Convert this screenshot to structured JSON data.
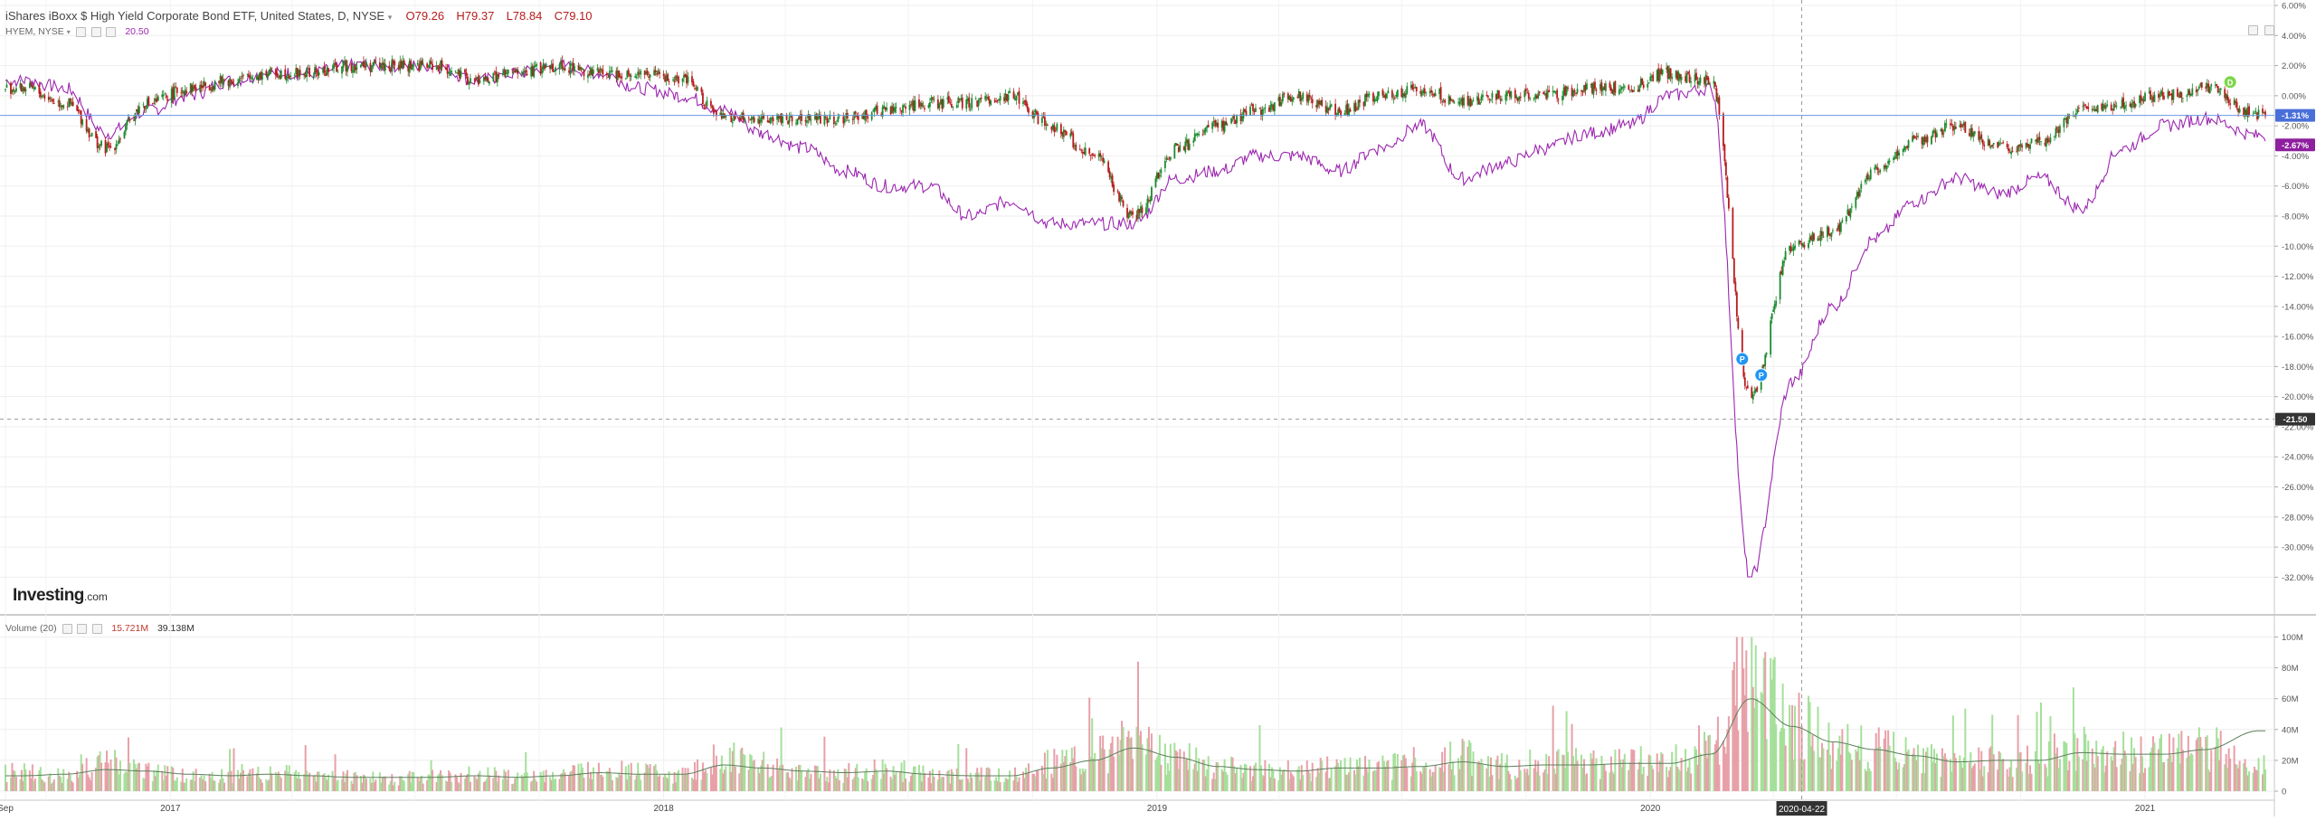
{
  "legend": {
    "main_title": "iShares iBoxx $ High Yield Corporate Bond ETF, United States, D, NYSE",
    "ohlc": {
      "open": "O79.26",
      "high": "H79.37",
      "low": "L78.84",
      "close": "C79.10"
    },
    "compare_symbol": "HYEM, NYSE",
    "compare_value": "20.50",
    "volume_label": "Volume (20)",
    "volume_value": "15.721M",
    "volume_ma_value": "39.138M"
  },
  "branding": {
    "logo_main": "Investing",
    "logo_suffix": ".com"
  },
  "price_badges": {
    "main": "-1.31%",
    "compare": "-2.67%",
    "crosshair": "-21.50"
  },
  "crosshair_date": "2020-04-22",
  "colors": {
    "up": "#26a69a",
    "up_candle": "#1b8a2e",
    "down": "#b71c1c",
    "compare_line": "#9c27b0",
    "volume_up": "#a5e09a",
    "volume_down": "#e8a0a8",
    "volume_ma": "#5d7f5d",
    "main_badge": "#4a6fd8",
    "compare_badge": "#8e1f9e",
    "marker_green": "#7cd64a",
    "marker_blue": "#2196f3"
  },
  "markers": [
    {
      "label": "D",
      "date": "2021-03-05",
      "icon": "dividend-marker-icon"
    },
    {
      "label": "P",
      "date": "2020-03-09",
      "icon": "split-marker-icon"
    },
    {
      "label": "P",
      "date": "2020-03-23",
      "icon": "split-marker-icon"
    }
  ],
  "chart_data": [
    {
      "type": "line",
      "title": "iShares iBoxx $ High Yield Corporate Bond ETF, United States, D, NYSE",
      "ylim": [
        -33,
        6
      ],
      "y_ticks": [
        "6.00%",
        "4.00%",
        "2.00%",
        "0.00%",
        "-2.00%",
        "-4.00%",
        "-6.00%",
        "-8.00%",
        "-10.00%",
        "-12.00%",
        "-14.00%",
        "-16.00%",
        "-18.00%",
        "-20.00%",
        "-22.00%",
        "-24.00%",
        "-26.00%",
        "-28.00%",
        "-30.00%",
        "-32.00%"
      ],
      "x_ticks": [
        "Sep",
        "2017",
        "2018",
        "2019",
        "2020",
        "2021"
      ],
      "grid": true,
      "series": [
        {
          "name": "iShares iBoxx $ High Yield Corporate Bond ETF",
          "x": [
            "2016-09",
            "2016-10",
            "2016-11",
            "2016-12",
            "2017-01",
            "2017-02",
            "2017-03",
            "2017-04",
            "2017-05",
            "2017-06",
            "2017-07",
            "2017-08",
            "2017-09",
            "2017-10",
            "2017-11",
            "2017-12",
            "2018-01",
            "2018-02",
            "2018-03",
            "2018-04",
            "2018-05",
            "2018-06",
            "2018-07",
            "2018-08",
            "2018-09",
            "2018-10",
            "2018-11",
            "2018-12",
            "2019-01",
            "2019-02",
            "2019-03",
            "2019-04",
            "2019-05",
            "2019-06",
            "2019-07",
            "2019-08",
            "2019-09",
            "2019-10",
            "2019-11",
            "2019-12",
            "2020-01",
            "2020-02",
            "2020-03",
            "2020-04",
            "2020-05",
            "2020-06",
            "2020-07",
            "2020-08",
            "2020-09",
            "2020-10",
            "2020-11",
            "2020-12",
            "2021-01",
            "2021-02",
            "2021-03"
          ],
          "values": [
            0.5,
            -0.5,
            -3.5,
            -0.5,
            0.5,
            1.0,
            1.5,
            1.5,
            2.0,
            2.0,
            2.0,
            1.0,
            1.5,
            2.0,
            1.5,
            1.5,
            1.0,
            -1.5,
            -1.5,
            -1.5,
            -1.5,
            -1.0,
            -0.5,
            -0.5,
            0.0,
            -2.0,
            -4.0,
            -8.0,
            -3.5,
            -2.0,
            -1.0,
            0.0,
            -1.0,
            0.0,
            0.5,
            -0.5,
            0.0,
            0.0,
            0.5,
            0.5,
            1.5,
            1.0,
            -20.0,
            -10.0,
            -9.0,
            -5.0,
            -3.0,
            -2.0,
            -3.5,
            -3.0,
            -1.0,
            -0.5,
            0.0,
            0.5,
            -1.31
          ]
        },
        {
          "name": "HYEM, NYSE",
          "x": [
            "2016-09",
            "2016-10",
            "2016-11",
            "2016-12",
            "2017-01",
            "2017-02",
            "2017-03",
            "2017-04",
            "2017-05",
            "2017-06",
            "2017-07",
            "2017-08",
            "2017-09",
            "2017-10",
            "2017-11",
            "2017-12",
            "2018-01",
            "2018-02",
            "2018-03",
            "2018-04",
            "2018-05",
            "2018-06",
            "2018-07",
            "2018-08",
            "2018-09",
            "2018-10",
            "2018-11",
            "2018-12",
            "2019-01",
            "2019-02",
            "2019-03",
            "2019-04",
            "2019-05",
            "2019-06",
            "2019-07",
            "2019-08",
            "2019-09",
            "2019-10",
            "2019-11",
            "2019-12",
            "2020-01",
            "2020-02",
            "2020-03",
            "2020-04",
            "2020-05",
            "2020-06",
            "2020-07",
            "2020-08",
            "2020-09",
            "2020-10",
            "2020-11",
            "2020-12",
            "2021-01",
            "2021-02",
            "2021-03"
          ],
          "values": [
            1.0,
            0.5,
            -2.5,
            -1.0,
            0.0,
            1.0,
            1.5,
            1.5,
            2.0,
            2.0,
            2.0,
            1.0,
            1.5,
            2.0,
            1.5,
            0.5,
            0.0,
            -1.0,
            -2.5,
            -3.5,
            -5.0,
            -6.0,
            -6.0,
            -8.0,
            -7.0,
            -8.5,
            -8.5,
            -8.5,
            -5.5,
            -5.0,
            -4.0,
            -4.0,
            -5.0,
            -3.5,
            -2.0,
            -5.5,
            -4.5,
            -3.5,
            -2.5,
            -2.0,
            0.0,
            0.5,
            -32.0,
            -19.0,
            -14.0,
            -9.5,
            -7.0,
            -5.5,
            -6.5,
            -5.5,
            -7.5,
            -3.5,
            -2.0,
            -1.5,
            -2.67
          ]
        }
      ]
    },
    {
      "type": "bar",
      "title": "Volume (20)",
      "ylim": [
        0,
        105
      ],
      "y_ticks": [
        "100M",
        "80M",
        "60M",
        "40M",
        "20M",
        "0"
      ],
      "series": [
        {
          "name": "Volume",
          "x": [
            "2016-09",
            "2016-10",
            "2016-11",
            "2016-12",
            "2017-01",
            "2017-02",
            "2017-03",
            "2017-04",
            "2017-05",
            "2017-06",
            "2017-07",
            "2017-08",
            "2017-09",
            "2017-10",
            "2017-11",
            "2017-12",
            "2018-01",
            "2018-02",
            "2018-03",
            "2018-04",
            "2018-05",
            "2018-06",
            "2018-07",
            "2018-08",
            "2018-09",
            "2018-10",
            "2018-11",
            "2018-12",
            "2019-01",
            "2019-02",
            "2019-03",
            "2019-04",
            "2019-05",
            "2019-06",
            "2019-07",
            "2019-08",
            "2019-09",
            "2019-10",
            "2019-11",
            "2019-12",
            "2020-01",
            "2020-02",
            "2020-03",
            "2020-04",
            "2020-05",
            "2020-06",
            "2020-07",
            "2020-08",
            "2020-09",
            "2020-10",
            "2020-11",
            "2020-12",
            "2021-01",
            "2021-02",
            "2021-03"
          ],
          "values": [
            12,
            10,
            18,
            12,
            10,
            9,
            12,
            10,
            9,
            8,
            9,
            11,
            9,
            10,
            14,
            12,
            10,
            22,
            15,
            12,
            12,
            14,
            11,
            10,
            10,
            18,
            22,
            32,
            22,
            15,
            14,
            13,
            15,
            16,
            16,
            22,
            16,
            18,
            17,
            19,
            20,
            30,
            75,
            45,
            32,
            28,
            24,
            18,
            20,
            20,
            28,
            25,
            25,
            28,
            15.721
          ]
        },
        {
          "name": "Volume MA (20)",
          "x": [
            "2016-09",
            "2016-10",
            "2016-11",
            "2016-12",
            "2017-01",
            "2017-02",
            "2017-03",
            "2017-04",
            "2017-05",
            "2017-06",
            "2017-07",
            "2017-08",
            "2017-09",
            "2017-10",
            "2017-11",
            "2017-12",
            "2018-01",
            "2018-02",
            "2018-03",
            "2018-04",
            "2018-05",
            "2018-06",
            "2018-07",
            "2018-08",
            "2018-09",
            "2018-10",
            "2018-11",
            "2018-12",
            "2019-01",
            "2019-02",
            "2019-03",
            "2019-04",
            "2019-05",
            "2019-06",
            "2019-07",
            "2019-08",
            "2019-09",
            "2019-10",
            "2019-11",
            "2019-12",
            "2020-01",
            "2020-02",
            "2020-03",
            "2020-04",
            "2020-05",
            "2020-06",
            "2020-07",
            "2020-08",
            "2020-09",
            "2020-10",
            "2020-11",
            "2020-12",
            "2021-01",
            "2021-02",
            "2021-03"
          ],
          "values": [
            10,
            11,
            14,
            13,
            11,
            10,
            11,
            10,
            9,
            9,
            9,
            10,
            9,
            10,
            12,
            11,
            11,
            17,
            15,
            13,
            12,
            13,
            11,
            10,
            10,
            15,
            20,
            28,
            22,
            16,
            14,
            13,
            15,
            15,
            16,
            19,
            16,
            17,
            17,
            18,
            18,
            24,
            60,
            42,
            32,
            27,
            23,
            19,
            20,
            20,
            25,
            24,
            24,
            27,
            39.138
          ]
        }
      ]
    }
  ]
}
